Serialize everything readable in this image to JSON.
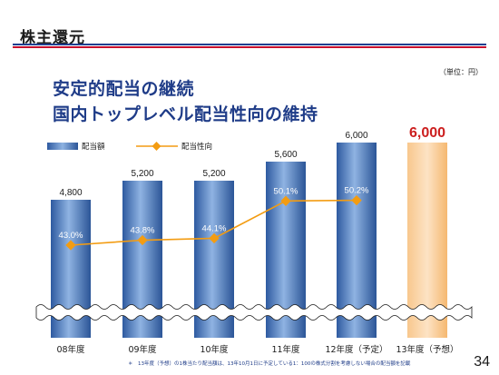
{
  "section_title": "株主還元",
  "unit_note": "（単位：円）",
  "headline_line1": "安定的配当の継続",
  "headline_line2": "国内トップレベル配当性向の維持",
  "footnote": "＊　13年度（予想）の1株当たり配当額は、13年10月1日に予定している1：100の株式分割を考慮しない場合の配当額を記載",
  "page_number": "34",
  "colors": {
    "title_blue": "#1f3c88",
    "bar_blue": "#4a7cc0",
    "forecast_orange": "#f7bf7e",
    "line_orange": "#f39c12",
    "forecast_red": "#cc1f1f",
    "rule_blue": "#1f3f8f",
    "rule_red": "#c8102e"
  },
  "chart_data": {
    "type": "bar",
    "categories": [
      "08年度",
      "09年度",
      "10年度",
      "11年度",
      "12年度（予定）",
      "13年度（予想）"
    ],
    "series": [
      {
        "name": "配当額",
        "type": "bar",
        "values": [
          4800,
          5200,
          5200,
          5600,
          6000,
          6000
        ],
        "labels": [
          "4,800",
          "5,200",
          "5,200",
          "5,600",
          "6,000",
          "6,000"
        ]
      },
      {
        "name": "配当性向",
        "type": "line",
        "values": [
          43.0,
          43.8,
          44.1,
          50.1,
          50.2,
          null
        ],
        "labels": [
          "43.0%",
          "43.8%",
          "44.1%",
          "50.1%",
          "50.2%",
          ""
        ]
      }
    ],
    "forecast_index": 5,
    "axis_break": true,
    "legend_position": "top-left"
  }
}
